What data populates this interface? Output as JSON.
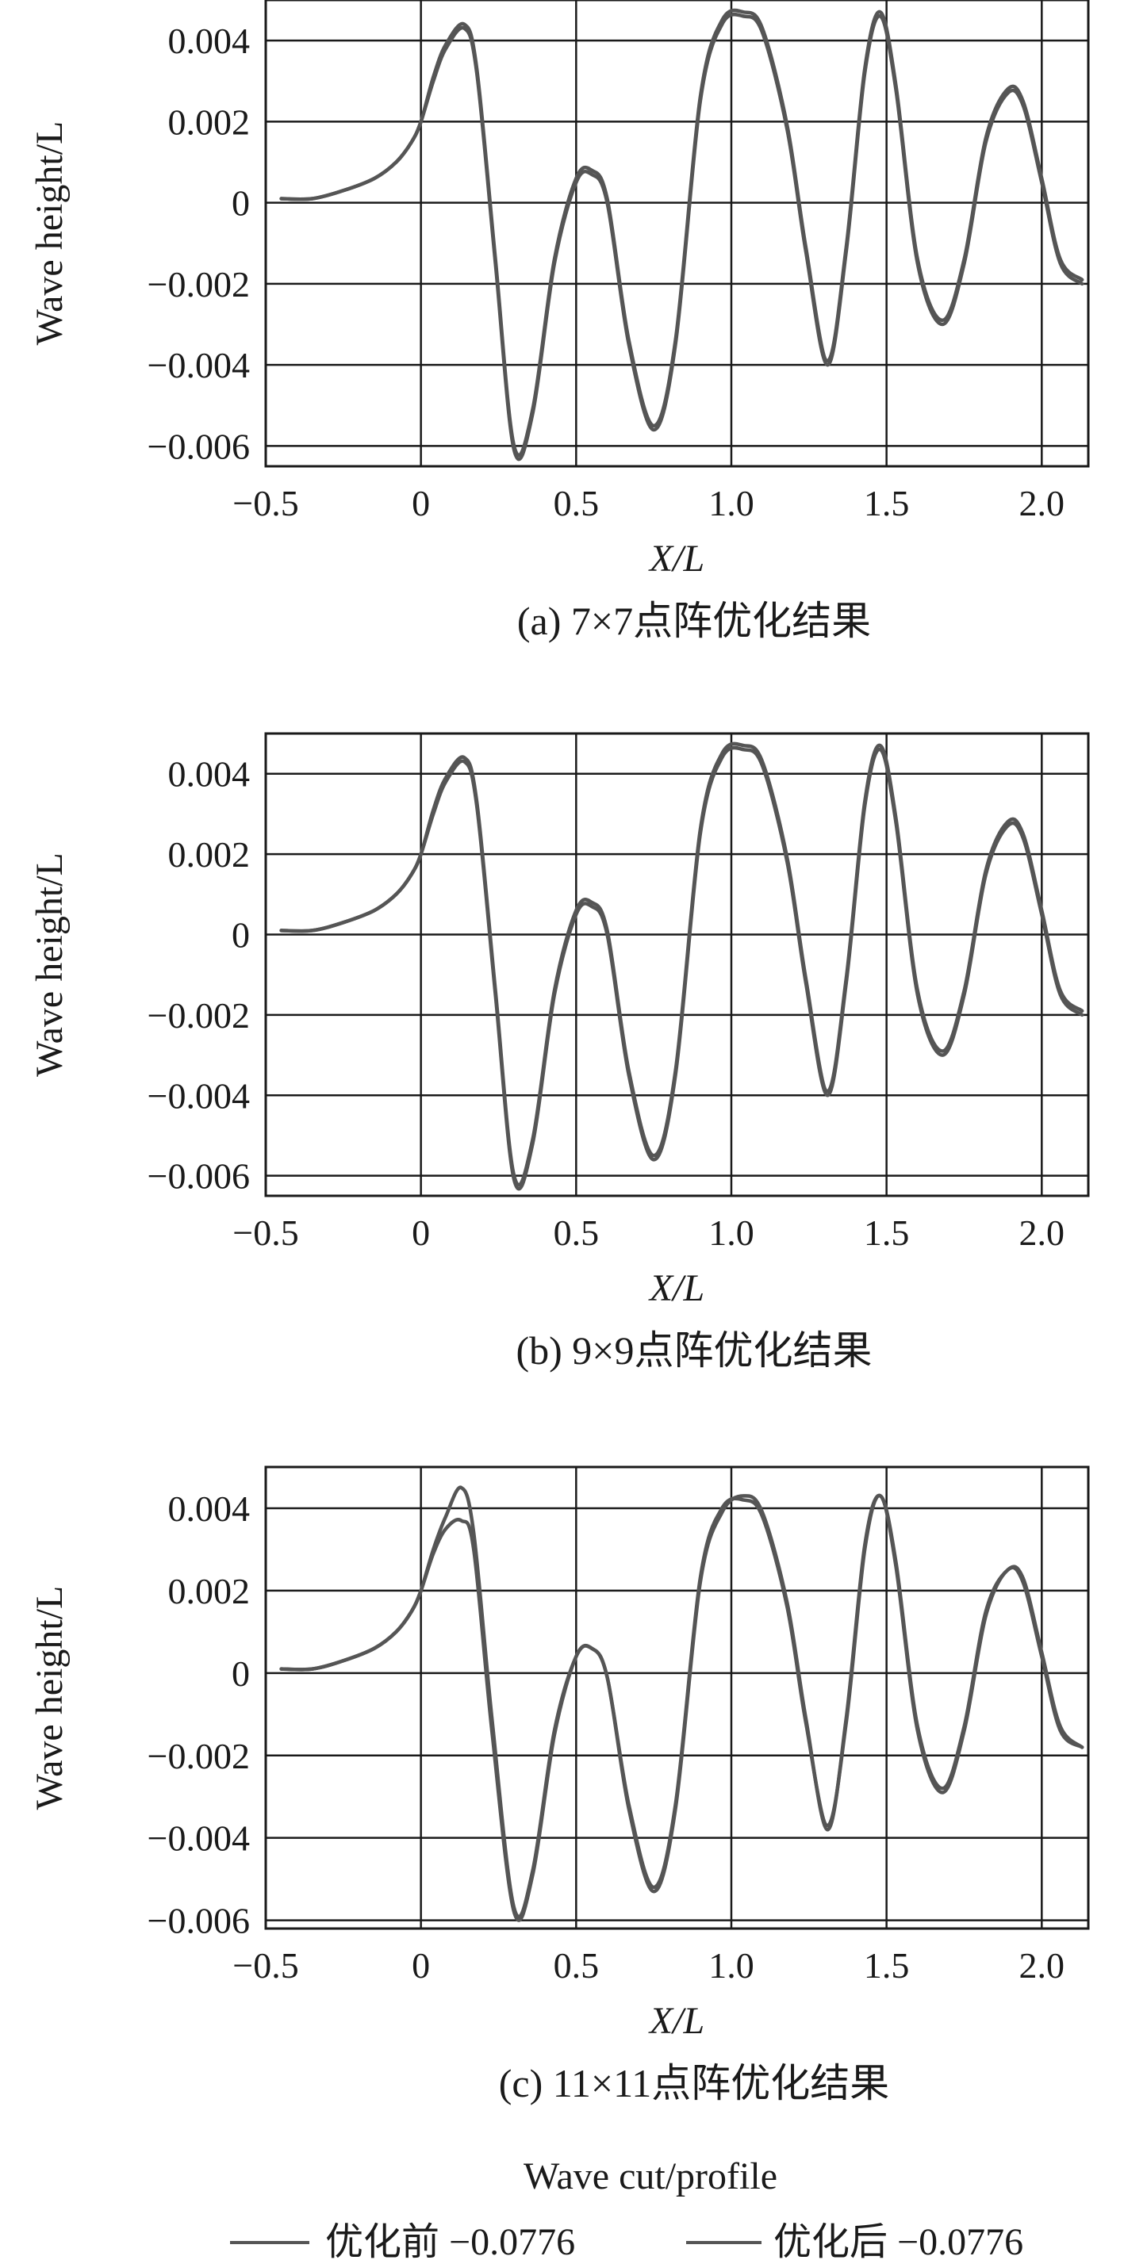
{
  "chart_data": [
    {
      "type": "line",
      "caption": "(a) 7×7点阵优化结果",
      "xlabel": "X/L",
      "ylabel": "Wave height/L",
      "xlim": [
        -0.5,
        2.15
      ],
      "ylim": [
        -0.0065,
        0.005
      ],
      "xticks": [
        -0.5,
        0,
        0.5,
        1.0,
        1.5,
        2.0
      ],
      "xtick_labels": [
        "−0.5",
        "0",
        "0.5",
        "1.0",
        "1.5",
        "2.0"
      ],
      "yticks": [
        0.004,
        0.002,
        0,
        -0.002,
        -0.004,
        -0.006
      ],
      "ytick_labels": [
        "0.004",
        "0.002",
        "0",
        "−0.002",
        "−0.004",
        "−0.006"
      ],
      "grid": true,
      "series": [
        {
          "name": "优化前 −0.0776",
          "x": [
            -0.45,
            -0.35,
            -0.25,
            -0.15,
            -0.08,
            -0.03,
            0.0,
            0.04,
            0.08,
            0.14,
            0.18,
            0.24,
            0.3,
            0.36,
            0.43,
            0.5,
            0.55,
            0.6,
            0.67,
            0.75,
            0.82,
            0.9,
            0.97,
            1.04,
            1.1,
            1.18,
            1.24,
            1.31,
            1.37,
            1.43,
            1.48,
            1.53,
            1.6,
            1.68,
            1.75,
            1.82,
            1.89,
            1.94,
            2.0,
            2.06,
            2.13
          ],
          "y": [
            0.0001,
            0.0001,
            0.0003,
            0.0006,
            0.001,
            0.0015,
            0.002,
            0.003,
            0.0038,
            0.0043,
            0.0032,
            -0.0015,
            -0.0061,
            -0.0052,
            -0.0015,
            0.0005,
            0.0007,
            0.0,
            -0.0035,
            -0.0056,
            -0.0035,
            0.0025,
            0.0044,
            0.0046,
            0.0042,
            0.0018,
            -0.0012,
            -0.004,
            -0.0012,
            0.0032,
            0.0046,
            0.0028,
            -0.0015,
            -0.003,
            -0.0015,
            0.0015,
            0.0027,
            0.0024,
            0.0005,
            -0.0015,
            -0.002
          ]
        },
        {
          "name": "优化后 −0.0776",
          "x": [
            -0.45,
            -0.35,
            -0.25,
            -0.15,
            -0.08,
            -0.03,
            0.0,
            0.04,
            0.08,
            0.14,
            0.18,
            0.24,
            0.3,
            0.36,
            0.43,
            0.5,
            0.55,
            0.6,
            0.67,
            0.75,
            0.82,
            0.9,
            0.97,
            1.04,
            1.1,
            1.18,
            1.24,
            1.31,
            1.37,
            1.43,
            1.48,
            1.53,
            1.6,
            1.68,
            1.75,
            1.82,
            1.89,
            1.94,
            2.0,
            2.06,
            2.13
          ],
          "y": [
            0.0001,
            0.0001,
            0.0003,
            0.0006,
            0.001,
            0.0015,
            0.002,
            0.0031,
            0.0039,
            0.0044,
            0.0033,
            -0.0014,
            -0.006,
            -0.0051,
            -0.0014,
            0.0006,
            0.0008,
            0.0001,
            -0.0034,
            -0.0055,
            -0.0034,
            0.0026,
            0.0045,
            0.0047,
            0.0043,
            0.0019,
            -0.0011,
            -0.0039,
            -0.0011,
            0.0033,
            0.0047,
            0.0029,
            -0.0014,
            -0.0029,
            -0.0014,
            0.0016,
            0.0028,
            0.0025,
            0.0006,
            -0.0014,
            -0.0019
          ]
        }
      ]
    },
    {
      "type": "line",
      "caption": "(b) 9×9点阵优化结果",
      "xlabel": "X/L",
      "ylabel": "Wave height/L",
      "xlim": [
        -0.5,
        2.15
      ],
      "ylim": [
        -0.0065,
        0.005
      ],
      "xticks": [
        -0.5,
        0,
        0.5,
        1.0,
        1.5,
        2.0
      ],
      "xtick_labels": [
        "−0.5",
        "0",
        "0.5",
        "1.0",
        "1.5",
        "2.0"
      ],
      "yticks": [
        0.004,
        0.002,
        0,
        -0.002,
        -0.004,
        -0.006
      ],
      "ytick_labels": [
        "0.004",
        "0.002",
        "0",
        "−0.002",
        "−0.004",
        "−0.006"
      ],
      "grid": true,
      "series": [
        {
          "name": "优化前 −0.0776",
          "x": [
            -0.45,
            -0.35,
            -0.25,
            -0.15,
            -0.08,
            -0.03,
            0.0,
            0.04,
            0.08,
            0.14,
            0.18,
            0.24,
            0.3,
            0.36,
            0.43,
            0.5,
            0.55,
            0.6,
            0.67,
            0.75,
            0.82,
            0.9,
            0.97,
            1.04,
            1.1,
            1.18,
            1.24,
            1.31,
            1.37,
            1.43,
            1.48,
            1.53,
            1.6,
            1.68,
            1.75,
            1.82,
            1.89,
            1.94,
            2.0,
            2.06,
            2.13
          ],
          "y": [
            0.0001,
            0.0001,
            0.0003,
            0.0006,
            0.001,
            0.0015,
            0.002,
            0.003,
            0.0038,
            0.0043,
            0.0032,
            -0.0015,
            -0.0061,
            -0.0052,
            -0.0015,
            0.0005,
            0.0007,
            0.0,
            -0.0035,
            -0.0056,
            -0.0035,
            0.0025,
            0.0044,
            0.0046,
            0.0042,
            0.0018,
            -0.0012,
            -0.004,
            -0.0012,
            0.0032,
            0.0046,
            0.0028,
            -0.0015,
            -0.003,
            -0.0015,
            0.0015,
            0.0027,
            0.0024,
            0.0005,
            -0.0015,
            -0.002
          ]
        },
        {
          "name": "优化后 −0.0776",
          "x": [
            -0.45,
            -0.35,
            -0.25,
            -0.15,
            -0.08,
            -0.03,
            0.0,
            0.04,
            0.08,
            0.14,
            0.18,
            0.24,
            0.3,
            0.36,
            0.43,
            0.5,
            0.55,
            0.6,
            0.67,
            0.75,
            0.82,
            0.9,
            0.97,
            1.04,
            1.1,
            1.18,
            1.24,
            1.31,
            1.37,
            1.43,
            1.48,
            1.53,
            1.6,
            1.68,
            1.75,
            1.82,
            1.89,
            1.94,
            2.0,
            2.06,
            2.13
          ],
          "y": [
            0.0001,
            0.0001,
            0.0003,
            0.0006,
            0.001,
            0.0015,
            0.002,
            0.0031,
            0.0039,
            0.0044,
            0.0033,
            -0.0014,
            -0.006,
            -0.0051,
            -0.0014,
            0.0006,
            0.0008,
            0.0001,
            -0.0034,
            -0.0055,
            -0.0034,
            0.0026,
            0.0045,
            0.0047,
            0.0043,
            0.0019,
            -0.0011,
            -0.0039,
            -0.0011,
            0.0033,
            0.0047,
            0.0029,
            -0.0014,
            -0.0029,
            -0.0014,
            0.0016,
            0.0028,
            0.0025,
            0.0006,
            -0.0014,
            -0.0019
          ]
        }
      ]
    },
    {
      "type": "line",
      "caption": "(c) 11×11点阵优化结果",
      "xlabel": "X/L",
      "ylabel": "Wave height/L",
      "xlim": [
        -0.5,
        2.15
      ],
      "ylim": [
        -0.0062,
        0.005
      ],
      "xticks": [
        -0.5,
        0,
        0.5,
        1.0,
        1.5,
        2.0
      ],
      "xtick_labels": [
        "−0.5",
        "0",
        "0.5",
        "1.0",
        "1.5",
        "2.0"
      ],
      "yticks": [
        0.004,
        0.002,
        0,
        -0.002,
        -0.004,
        -0.006
      ],
      "ytick_labels": [
        "0.004",
        "0.002",
        "0",
        "−0.002",
        "−0.004",
        "−0.006"
      ],
      "grid": true,
      "series": [
        {
          "name": "优化前 −0.0776",
          "x": [
            -0.45,
            -0.35,
            -0.25,
            -0.15,
            -0.08,
            -0.03,
            0.0,
            0.04,
            0.08,
            0.13,
            0.17,
            0.23,
            0.3,
            0.36,
            0.43,
            0.5,
            0.55,
            0.6,
            0.67,
            0.75,
            0.82,
            0.9,
            0.97,
            1.04,
            1.1,
            1.18,
            1.24,
            1.31,
            1.37,
            1.43,
            1.48,
            1.53,
            1.6,
            1.68,
            1.75,
            1.82,
            1.89,
            1.94,
            2.0,
            2.06,
            2.13
          ],
          "y": [
            0.0001,
            0.0001,
            0.0003,
            0.0006,
            0.001,
            0.0015,
            0.002,
            0.003,
            0.0038,
            0.0045,
            0.0034,
            -0.0012,
            -0.0057,
            -0.0048,
            -0.0014,
            0.0004,
            0.0006,
            -0.0001,
            -0.0032,
            -0.0052,
            -0.0032,
            0.0023,
            0.004,
            0.0042,
            0.0038,
            0.0016,
            -0.0012,
            -0.0037,
            -0.0012,
            0.003,
            0.0043,
            0.0026,
            -0.0014,
            -0.0029,
            -0.0014,
            0.0014,
            0.0025,
            0.0022,
            0.0004,
            -0.0014,
            -0.0018
          ]
        },
        {
          "name": "优化后 −0.0776",
          "x": [
            -0.45,
            -0.35,
            -0.25,
            -0.15,
            -0.08,
            -0.03,
            0.0,
            0.04,
            0.08,
            0.13,
            0.17,
            0.23,
            0.3,
            0.36,
            0.43,
            0.5,
            0.55,
            0.6,
            0.67,
            0.75,
            0.82,
            0.9,
            0.97,
            1.04,
            1.1,
            1.18,
            1.24,
            1.31,
            1.37,
            1.43,
            1.48,
            1.53,
            1.6,
            1.68,
            1.75,
            1.82,
            1.89,
            1.94,
            2.0,
            2.06,
            2.13
          ],
          "y": [
            0.0001,
            0.0001,
            0.0003,
            0.0006,
            0.001,
            0.0015,
            0.002,
            0.0029,
            0.0035,
            0.0037,
            0.003,
            -0.0015,
            -0.0058,
            -0.0049,
            -0.0015,
            0.0004,
            0.0006,
            -0.0001,
            -0.0033,
            -0.0053,
            -0.0033,
            0.0022,
            0.0039,
            0.0043,
            0.0039,
            0.0017,
            -0.0011,
            -0.0038,
            -0.0011,
            0.0031,
            0.0043,
            0.0027,
            -0.0013,
            -0.0028,
            -0.0013,
            0.0015,
            0.0025,
            0.0023,
            0.0005,
            -0.0013,
            -0.0018
          ]
        }
      ]
    }
  ],
  "legend": {
    "title": "Wave cut/profile",
    "items": [
      "优化前 −0.0776",
      "优化后 −0.0776"
    ],
    "colors": [
      "#555555",
      "#555555"
    ],
    "placement": "bottom"
  },
  "colors": {
    "axis": "#1a1a1a",
    "grid": "#1a1a1a",
    "line": "#555555"
  }
}
